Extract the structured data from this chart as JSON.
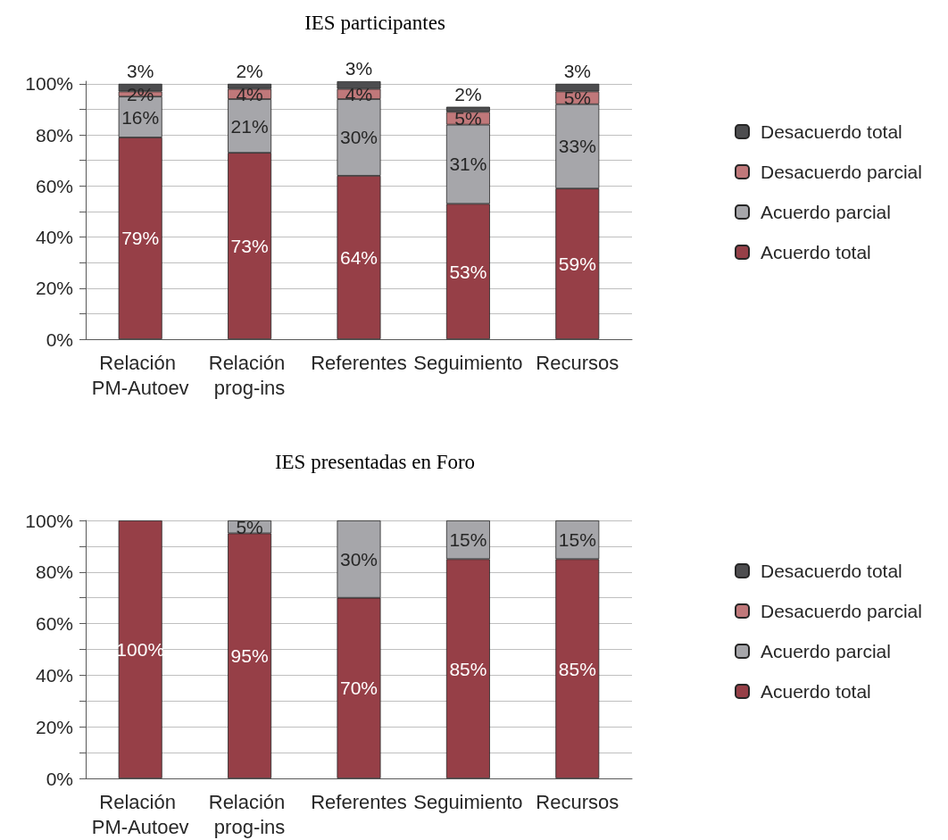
{
  "chart_data": [
    {
      "type": "bar",
      "title": "IES participantes",
      "categories": [
        "Relación PM-Autoev",
        "Relación prog-ins",
        "Referentes",
        "Seguimiento",
        "Recursos"
      ],
      "stacked": true,
      "ylim": [
        0,
        101
      ],
      "yticks": [
        {
          "value": 0,
          "label": "0%"
        },
        {
          "value": 10,
          "label": null
        },
        {
          "value": 20,
          "label": "20%"
        },
        {
          "value": 30,
          "label": null
        },
        {
          "value": 40,
          "label": "40%"
        },
        {
          "value": 50,
          "label": null
        },
        {
          "value": 60,
          "label": "60%"
        },
        {
          "value": 70,
          "label": null
        },
        {
          "value": 80,
          "label": "80%"
        },
        {
          "value": 90,
          "label": null
        },
        {
          "value": 100,
          "label": "100%"
        }
      ],
      "grid": "y",
      "legend": "right",
      "series": [
        {
          "name": "Acuerdo total",
          "color": "#963f47",
          "values": [
            79,
            73,
            64,
            53,
            59
          ],
          "value_labels": [
            "79%",
            "73%",
            "64%",
            "53%",
            "59%"
          ]
        },
        {
          "name": "Acuerdo parcial",
          "color": "#a6a6aa",
          "values": [
            16,
            21,
            30,
            31,
            33
          ],
          "value_labels": [
            "16%",
            "21%",
            "30%",
            "31%",
            "33%"
          ]
        },
        {
          "name": "Desacuerdo parcial",
          "color": "#c0787a",
          "values": [
            2,
            4,
            4,
            5,
            5
          ],
          "value_labels": [
            "2%",
            "4%",
            "4%",
            "5%",
            "5%"
          ]
        },
        {
          "name": "Desacuerdo total",
          "color": "#4d4d4f",
          "values": [
            3,
            2,
            3,
            2,
            3
          ],
          "value_labels": [
            "3%",
            "2%",
            "3%",
            "2%",
            "3%"
          ]
        }
      ]
    },
    {
      "type": "bar",
      "title": "IES presentadas en Foro",
      "categories": [
        "Relación PM-Autoev",
        "Relación prog-ins",
        "Referentes",
        "Seguimiento",
        "Recursos"
      ],
      "stacked": true,
      "ylim": [
        0,
        100
      ],
      "yticks": [
        {
          "value": 0,
          "label": "0%"
        },
        {
          "value": 10,
          "label": null
        },
        {
          "value": 20,
          "label": "20%"
        },
        {
          "value": 30,
          "label": null
        },
        {
          "value": 40,
          "label": "40%"
        },
        {
          "value": 50,
          "label": null
        },
        {
          "value": 60,
          "label": "60%"
        },
        {
          "value": 70,
          "label": null
        },
        {
          "value": 80,
          "label": "80%"
        },
        {
          "value": 90,
          "label": null
        },
        {
          "value": 100,
          "label": "100%"
        }
      ],
      "grid": "y",
      "legend": "right",
      "series": [
        {
          "name": "Acuerdo total",
          "color": "#963f47",
          "values": [
            100,
            95,
            70,
            85,
            85
          ],
          "value_labels": [
            "100%",
            "95%",
            "70%",
            "85%",
            "85%"
          ]
        },
        {
          "name": "Acuerdo parcial",
          "color": "#a6a6aa",
          "values": [
            null,
            5,
            30,
            15,
            15
          ],
          "value_labels": [
            null,
            "5%",
            "30%",
            "15%",
            "15%"
          ]
        },
        {
          "name": "Desacuerdo parcial",
          "color": "#c0787a",
          "values": [
            null,
            null,
            null,
            null,
            null
          ]
        },
        {
          "name": "Desacuerdo total",
          "color": "#4d4d4f",
          "values": [
            null,
            null,
            null,
            null,
            null
          ]
        }
      ]
    }
  ]
}
